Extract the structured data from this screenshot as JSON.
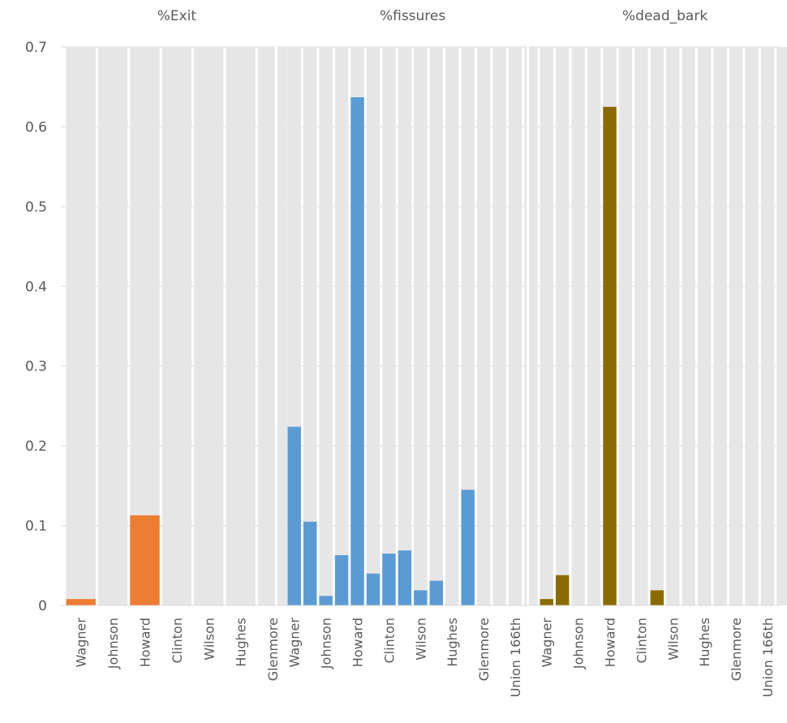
{
  "chart_data": {
    "type": "bar",
    "ylim": [
      0,
      0.7
    ],
    "yticks": [
      "0",
      "0.1",
      "0.2",
      "0.3",
      "0.4",
      "0.5",
      "0.6",
      "0.7"
    ],
    "panels": [
      {
        "name": "%Exit",
        "color": "#ED7D31",
        "categories": [
          "Wagner",
          "Johnson",
          "Howard",
          "Clinton",
          "Wilson",
          "Hughes",
          "Glenmore"
        ],
        "values": [
          0.008,
          0,
          0.113,
          0,
          0,
          0,
          0
        ]
      },
      {
        "name": "%fissures",
        "color": "#5B9BD5",
        "categories": [
          "Wagner",
          "",
          "Johnson",
          "",
          "Howard",
          "",
          "Clinton",
          "",
          "Wilson",
          "",
          "Hughes",
          "",
          "Glenmore",
          "",
          "Union 166th",
          ""
        ],
        "values": [
          0.224,
          0.105,
          0.012,
          0.063,
          0.637,
          0.04,
          0.065,
          0.069,
          0.019,
          0.031,
          0,
          0.145,
          0,
          0,
          0,
          0
        ]
      },
      {
        "name": "%dead_bark",
        "color": "#8B6A00",
        "categories": [
          "Wagner",
          "",
          "Johnson",
          "",
          "Howard",
          "",
          "Clinton",
          "",
          "Wilson",
          "",
          "Hughes",
          "",
          "Glenmore",
          "",
          "Union 166th",
          ""
        ],
        "values": [
          0.008,
          0.038,
          0,
          0,
          0.625,
          0,
          0,
          0.019,
          0,
          0,
          0,
          0,
          0,
          0,
          0,
          0
        ]
      }
    ]
  }
}
